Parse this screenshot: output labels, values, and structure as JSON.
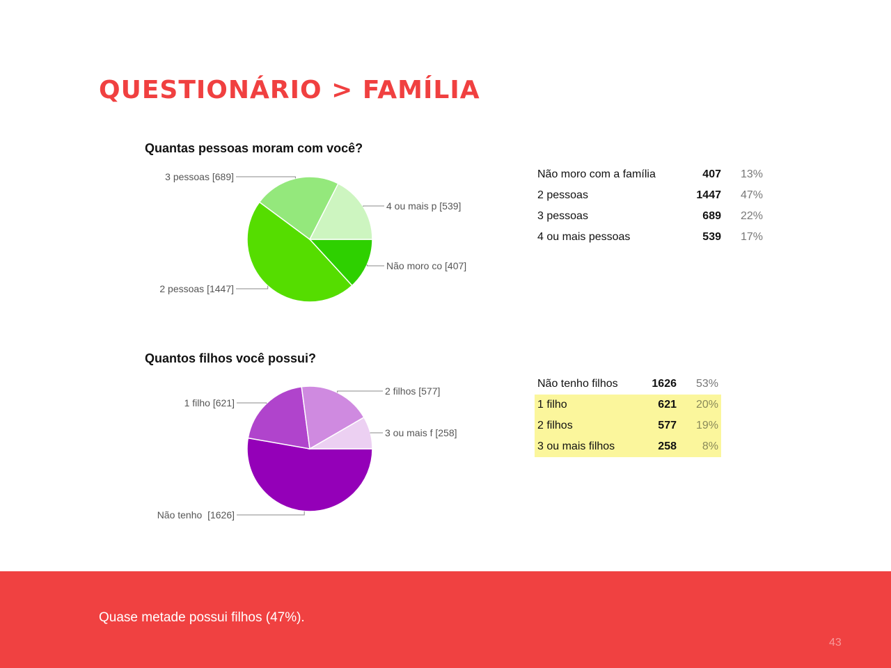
{
  "slide": {
    "title": "QUESTIONÁRIO > FAMÍLIA",
    "footer_note": "Quase metade possui filhos (47%).",
    "page_number": "43"
  },
  "colors": {
    "accent": "#f04141",
    "highlight": "#fbf69c"
  },
  "chart_data": [
    {
      "type": "pie",
      "title": "Quantas pessoas moram com você?",
      "slices": [
        {
          "name": "Não moro com a família",
          "value": 407,
          "percent": "13%",
          "label": "Não moro co [407]",
          "color": "#2ed000"
        },
        {
          "name": "2 pessoas",
          "value": 1447,
          "percent": "47%",
          "label": "2 pessoas [1447]",
          "color": "#55dd00"
        },
        {
          "name": "3 pessoas",
          "value": 689,
          "percent": "22%",
          "label": "3 pessoas [689]",
          "color": "#94e87c"
        },
        {
          "name": "4 ou mais pessoas",
          "value": 539,
          "percent": "17%",
          "label": "4 ou mais p [539]",
          "color": "#cdf5c0"
        }
      ]
    },
    {
      "type": "pie",
      "title": "Quantos filhos você possui?",
      "slices": [
        {
          "name": "Não tenho filhos",
          "value": 1626,
          "percent": "53%",
          "label": "Não tenho  [1626]",
          "color": "#9400b8"
        },
        {
          "name": "1 filho",
          "value": 621,
          "percent": "20%",
          "label": "1 filho [621]",
          "color": "#b044cc"
        },
        {
          "name": "2 filhos",
          "value": 577,
          "percent": "19%",
          "label": "2 filhos [577]",
          "color": "#cf8ae0"
        },
        {
          "name": "3 ou mais filhos",
          "value": 258,
          "percent": "8%",
          "label": "3 ou mais f [258]",
          "color": "#ecd0f2"
        }
      ],
      "highlighted_rows": [
        1,
        2,
        3
      ]
    }
  ]
}
